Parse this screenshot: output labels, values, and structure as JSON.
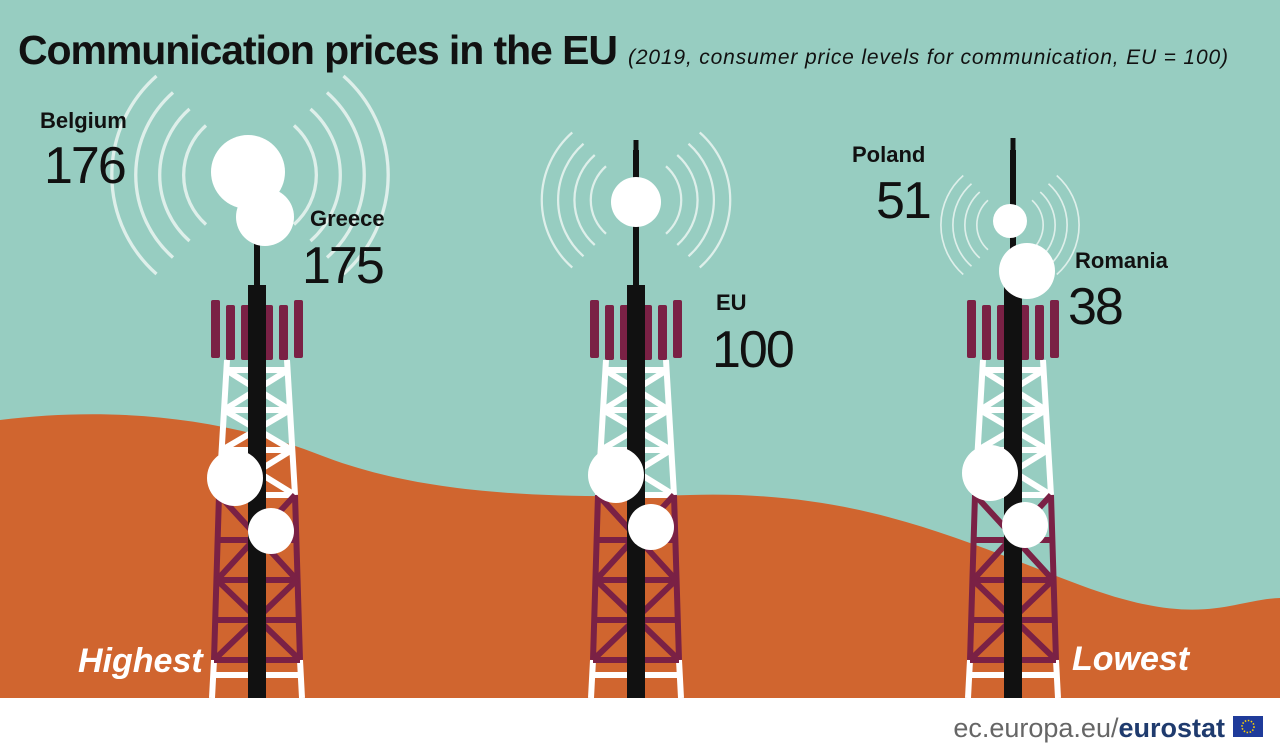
{
  "header": {
    "title": "Communication prices in the EU",
    "subtitle": "(2019, consumer price levels for communication, EU = 100)"
  },
  "items": [
    {
      "country": "Belgium",
      "value": "176"
    },
    {
      "country": "Greece",
      "value": "175"
    },
    {
      "country": "EU",
      "value": "100"
    },
    {
      "country": "Poland",
      "value": "51"
    },
    {
      "country": "Romania",
      "value": "38"
    }
  ],
  "side_labels": {
    "left": "Highest",
    "right": "Lowest"
  },
  "footer": {
    "url": "ec.europa.eu/",
    "brand": "eurostat"
  }
}
